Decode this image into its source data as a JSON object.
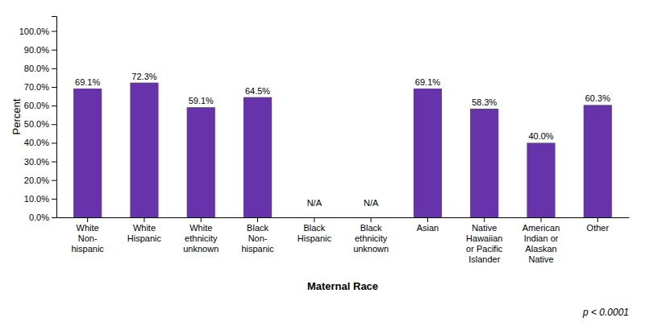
{
  "chart_data": {
    "type": "bar",
    "categories": [
      "White\nNon-\nhispanic",
      "White\nHispanic",
      "White\nethnicity\nunknown",
      "Black\nNon-\nhispanic",
      "Black\nHispanic",
      "Black\nethnicity\nunknown",
      "Asian",
      "Native\nHawaiian\nor Pacific\nIslander",
      "American\nIndian or\nAlaskan\nNative",
      "Other"
    ],
    "values": [
      69.1,
      72.3,
      59.1,
      64.5,
      null,
      null,
      69.1,
      58.3,
      40.0,
      60.3
    ],
    "value_labels": [
      "69.1%",
      "72.3%",
      "59.1%",
      "64.5%",
      "N/A",
      "N/A",
      "69.1%",
      "58.3%",
      "40.0%",
      "60.3%"
    ],
    "data_labels": true,
    "color": "#6633aa",
    "xlabel": "Maternal Race",
    "ylabel": "Percent",
    "annotations": [
      "p < 0.0001"
    ],
    "ylim": [
      0,
      108
    ],
    "yticks": [
      {
        "value": 0,
        "label": "0.0%"
      },
      {
        "value": 10,
        "label": "10.0%"
      },
      {
        "value": 20,
        "label": "20.0%"
      },
      {
        "value": 30,
        "label": "30.0%"
      },
      {
        "value": 40,
        "label": "40.0%"
      },
      {
        "value": 50,
        "label": "50.0%"
      },
      {
        "value": 60,
        "label": "60.0%"
      },
      {
        "value": 70,
        "label": "70.0%"
      },
      {
        "value": 80,
        "label": "80.0%"
      },
      {
        "value": 90,
        "label": "90.0%"
      },
      {
        "value": 100,
        "label": "100.0%"
      }
    ],
    "grid": false
  }
}
